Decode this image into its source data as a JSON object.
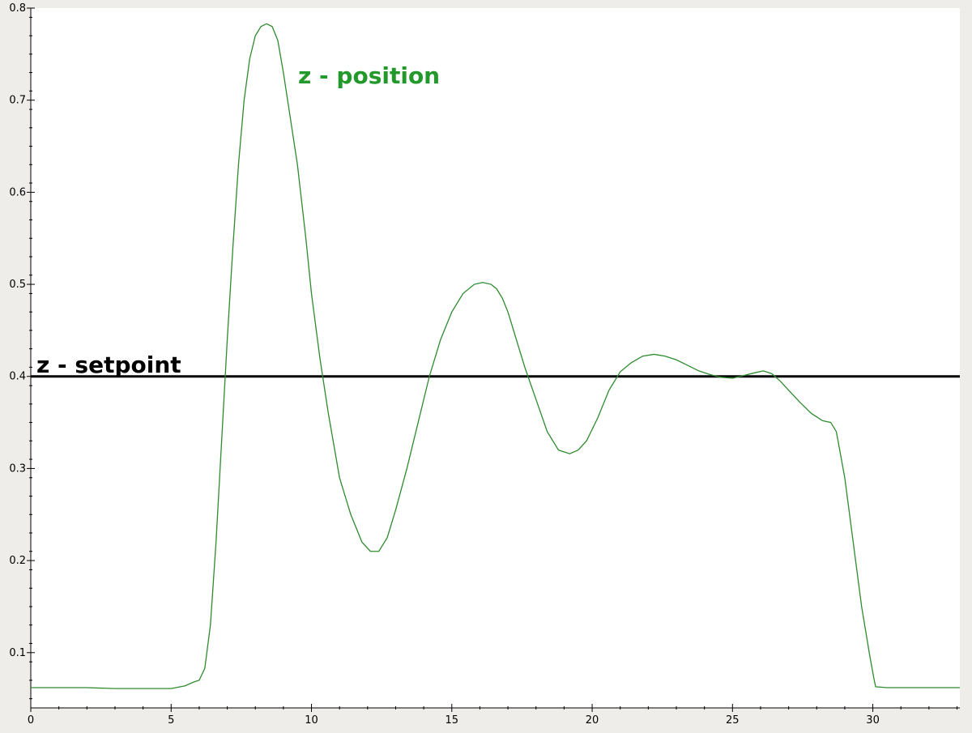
{
  "chart_data": {
    "type": "line",
    "title": "",
    "xlabel": "",
    "ylabel": "",
    "xlim": [
      0,
      33.1
    ],
    "ylim": [
      0.04,
      0.8
    ],
    "x_ticks": [
      0,
      5,
      10,
      15,
      20,
      25,
      30
    ],
    "x_tick_labels": [
      "0",
      "5",
      "10",
      "15",
      "20",
      "25",
      "30"
    ],
    "y_ticks": [
      0.1,
      0.2,
      0.3,
      0.4,
      0.5,
      0.6,
      0.7,
      0.8
    ],
    "y_tick_labels": [
      "0.1",
      "0.2",
      "0.3",
      "0.4",
      "0.5",
      "0.6",
      "0.7",
      "0.8"
    ],
    "grid": false,
    "legend": "none",
    "colors": {
      "plot_background": "#ffffff",
      "page_background": "#efedea",
      "position_line": "#2e8b2e",
      "position_label": "#22992a",
      "setpoint_line": "#000000",
      "axis": "#000000"
    },
    "series": [
      {
        "key": "position",
        "x": [
          0,
          2,
          3,
          4,
          5,
          5.5,
          5.8,
          6.0,
          6.2,
          6.4,
          6.6,
          6.8,
          7.0,
          7.2,
          7.4,
          7.6,
          7.8,
          8.0,
          8.2,
          8.4,
          8.6,
          8.8,
          9.0,
          9.2,
          9.5,
          9.8,
          10.0,
          10.3,
          10.6,
          11.0,
          11.4,
          11.8,
          12.1,
          12.4,
          12.7,
          13.0,
          13.4,
          13.8,
          14.2,
          14.6,
          15.0,
          15.4,
          15.8,
          16.1,
          16.4,
          16.6,
          16.8,
          17.0,
          17.3,
          17.6,
          18.0,
          18.4,
          18.8,
          19.2,
          19.5,
          19.8,
          20.2,
          20.6,
          21.0,
          21.4,
          21.8,
          22.2,
          22.6,
          23.0,
          23.4,
          23.8,
          24.2,
          24.6,
          25.0,
          25.4,
          25.8,
          26.1,
          26.4,
          26.7,
          27.0,
          27.4,
          27.8,
          28.2,
          28.5,
          28.7,
          29.0,
          29.3,
          29.6,
          29.9,
          30.05,
          30.1,
          30.5,
          31,
          32,
          33.1
        ],
        "y": [
          0.062,
          0.062,
          0.061,
          0.061,
          0.061,
          0.064,
          0.068,
          0.07,
          0.083,
          0.13,
          0.22,
          0.33,
          0.44,
          0.54,
          0.63,
          0.7,
          0.745,
          0.77,
          0.78,
          0.783,
          0.78,
          0.765,
          0.73,
          0.69,
          0.63,
          0.55,
          0.49,
          0.42,
          0.36,
          0.29,
          0.25,
          0.22,
          0.21,
          0.21,
          0.225,
          0.255,
          0.3,
          0.35,
          0.4,
          0.44,
          0.47,
          0.49,
          0.5,
          0.502,
          0.5,
          0.495,
          0.485,
          0.47,
          0.44,
          0.41,
          0.375,
          0.34,
          0.32,
          0.316,
          0.32,
          0.33,
          0.355,
          0.385,
          0.405,
          0.415,
          0.422,
          0.424,
          0.422,
          0.418,
          0.412,
          0.406,
          0.402,
          0.399,
          0.398,
          0.401,
          0.404,
          0.406,
          0.403,
          0.395,
          0.385,
          0.372,
          0.36,
          0.352,
          0.35,
          0.34,
          0.29,
          0.22,
          0.15,
          0.095,
          0.07,
          0.063,
          0.062,
          0.062,
          0.062,
          0.062
        ]
      },
      {
        "key": "setpoint",
        "x": [
          0,
          33.1
        ],
        "y": [
          0.4,
          0.4
        ]
      }
    ],
    "annotations": {
      "position_label": "z - position",
      "setpoint_label": "z - setpoint"
    }
  }
}
